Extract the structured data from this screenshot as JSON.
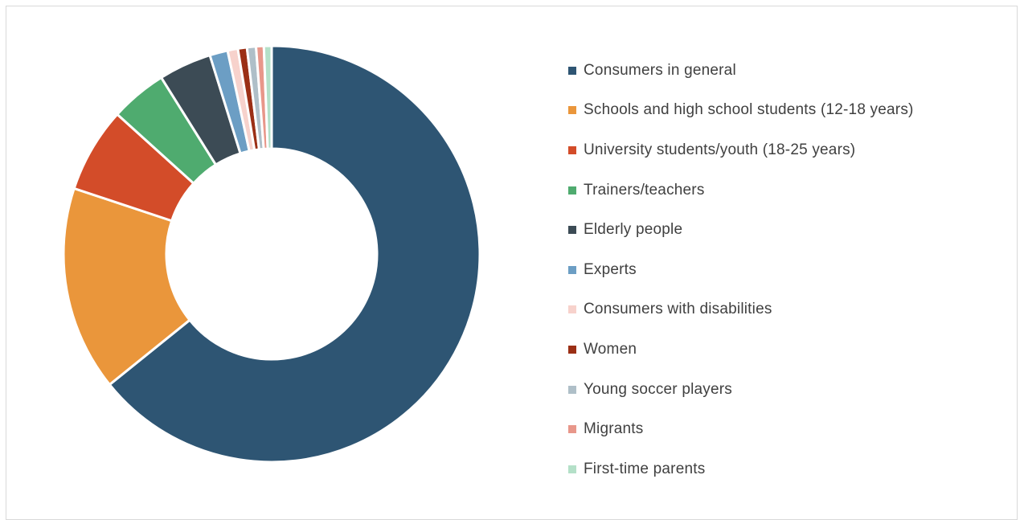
{
  "chart_data": {
    "type": "pie",
    "variant": "doughnut",
    "title": "",
    "legend_position": "right",
    "categories": [
      "Consumers in general",
      "Schools and high school students (12-18 years)",
      "University students/youth (18-25 years)",
      "Trainers/teachers",
      "Elderly people",
      "Experts",
      "Consumers with disabilities",
      "Women",
      "Young soccer players",
      "Migrants",
      "First-time parents"
    ],
    "values": [
      64.2,
      15.9,
      6.6,
      4.4,
      4.1,
      1.4,
      0.8,
      0.7,
      0.7,
      0.6,
      0.6
    ],
    "colors": [
      "#2e5573",
      "#ea963b",
      "#d34c29",
      "#4fab6f",
      "#3c4b55",
      "#6c9ec4",
      "#f7d2cc",
      "#9b2f15",
      "#afbfc8",
      "#e8978a",
      "#b4e0c8"
    ]
  }
}
